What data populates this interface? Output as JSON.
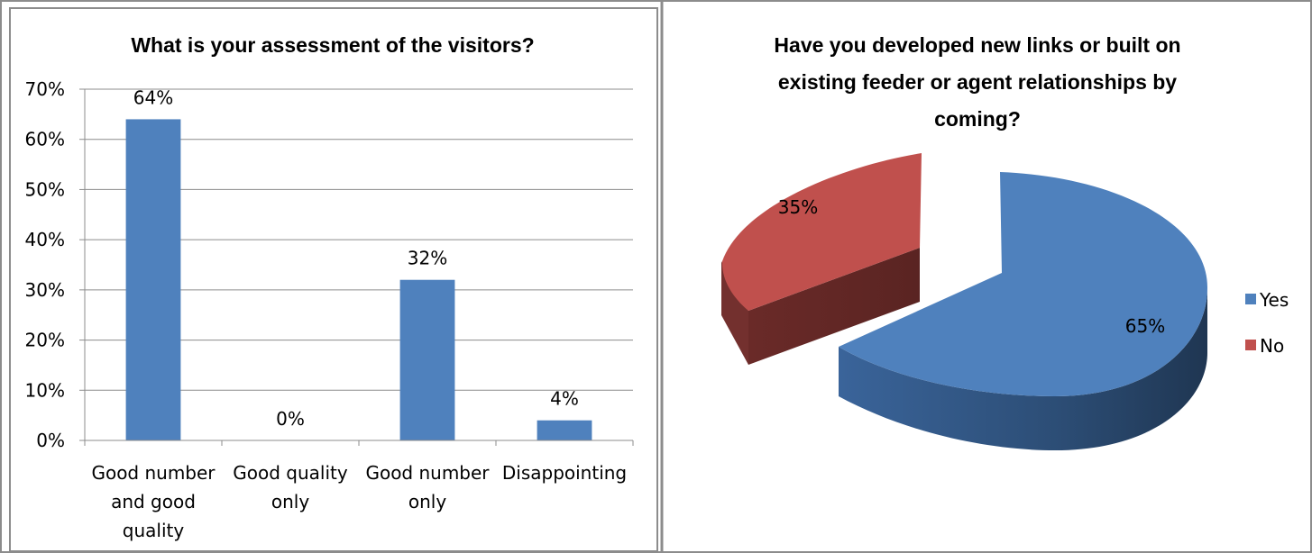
{
  "chart_data": [
    {
      "type": "bar",
      "title": "What is your assessment of the visitors?",
      "categories": [
        [
          "Good number",
          "and good",
          "quality"
        ],
        [
          "Good quality",
          "only"
        ],
        [
          "Good number",
          "only"
        ],
        [
          "Disappointing"
        ]
      ],
      "values": [
        64,
        0,
        32,
        4
      ],
      "data_labels": [
        "64%",
        "0%",
        "32%",
        "4%"
      ],
      "yticks": [
        "0%",
        "10%",
        "20%",
        "30%",
        "40%",
        "50%",
        "60%",
        "70%"
      ],
      "ylim": [
        0,
        70
      ],
      "grid": true,
      "color": "#4F81BD"
    },
    {
      "type": "pie",
      "title_lines": [
        "Have you developed new links or built on",
        "existing feeder or agent relationships by",
        "coming?"
      ],
      "slices": [
        {
          "label": "Yes",
          "value": 65,
          "data_label": "65%",
          "color": "#4F81BD",
          "side": "#2C4D75"
        },
        {
          "label": "No",
          "value": 35,
          "data_label": "35%",
          "color": "#C0504D",
          "side": "#73302E"
        }
      ],
      "legend": [
        "Yes",
        "No"
      ],
      "legend_position": "right",
      "exploded": true,
      "three_d": true
    }
  ]
}
